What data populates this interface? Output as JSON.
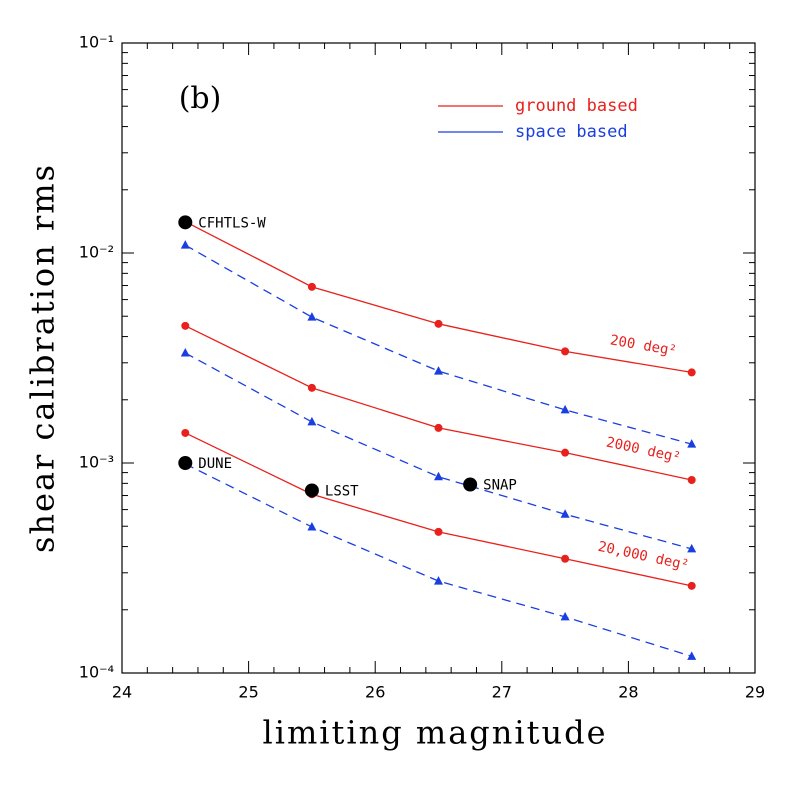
{
  "chart_data": {
    "type": "line",
    "panel_label": "(b)",
    "xlabel": "limiting magnitude",
    "ylabel": "shear calibration rms",
    "log_y": true,
    "xlim": [
      24,
      29
    ],
    "ylim": [
      0.0001,
      0.1
    ],
    "xticks": [
      24,
      25,
      26,
      27,
      28,
      29
    ],
    "yticks": [
      {
        "value": 0.1,
        "label": "10⁻¹"
      },
      {
        "value": 0.01,
        "label": "10⁻²"
      },
      {
        "value": 0.001,
        "label": "10⁻³"
      },
      {
        "value": 0.0001,
        "label": "10⁻⁴"
      }
    ],
    "legend": [
      {
        "name": "ground based",
        "color": "#e8211c",
        "dashed": false,
        "marker": "circle"
      },
      {
        "name": "space based",
        "color": "#1a3fe0",
        "dashed": true,
        "marker": "triangle"
      }
    ],
    "x": [
      24.5,
      25.5,
      26.5,
      27.5,
      28.5
    ],
    "series": [
      {
        "legend": 0,
        "label": "200 deg²",
        "values": [
          0.0141,
          0.0069,
          0.0046,
          0.0034,
          0.0027
        ]
      },
      {
        "legend": 1,
        "values": [
          0.0109,
          0.00495,
          0.00274,
          0.00179,
          0.00123
        ]
      },
      {
        "legend": 0,
        "label": "2000 deg²",
        "values": [
          0.0045,
          0.00228,
          0.00147,
          0.00112,
          0.00083
        ]
      },
      {
        "legend": 1,
        "values": [
          0.00334,
          0.00157,
          0.00086,
          0.00057,
          0.00039
        ]
      },
      {
        "legend": 0,
        "label": "20,000 deg²",
        "values": [
          0.00139,
          0.00071,
          0.00047,
          0.00035,
          0.00026
        ]
      },
      {
        "legend": 1,
        "values": [
          0.00099,
          0.000496,
          0.000274,
          0.000185,
          0.00012
        ]
      }
    ],
    "points": [
      {
        "name": "CFHTLS-W",
        "x": 24.5,
        "y": 0.014
      },
      {
        "name": "DUNE",
        "x": 24.5,
        "y": 0.001
      },
      {
        "name": "LSST",
        "x": 25.5,
        "y": 0.00074
      },
      {
        "name": "SNAP",
        "x": 26.75,
        "y": 0.00079
      }
    ]
  }
}
